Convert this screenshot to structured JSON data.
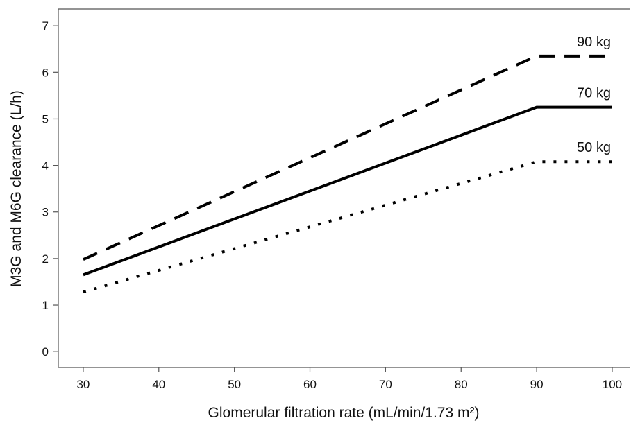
{
  "chart_data": {
    "type": "line",
    "x_label": "Glomerular filtration rate (mL/min/1.73 m²)",
    "y_label": "M3G and M6G clearance (L/h)",
    "x": [
      30,
      90,
      100
    ],
    "series": [
      {
        "name": "90 kg",
        "color": "#000000",
        "line_style": "dashed",
        "values": [
          1.98,
          6.35,
          6.35
        ]
      },
      {
        "name": "70 kg",
        "color": "#000000",
        "line_style": "solid",
        "values": [
          1.65,
          5.25,
          5.25
        ]
      },
      {
        "name": "50 kg",
        "color": "#000000",
        "line_style": "dotted",
        "values": [
          1.28,
          4.08,
          4.08
        ]
      }
    ],
    "xlim": [
      26.7,
      102.3
    ],
    "ylim": [
      -0.34,
      7.36
    ],
    "xticks": [
      30,
      40,
      50,
      60,
      70,
      80,
      90,
      100
    ],
    "yticks": [
      0,
      1,
      2,
      3,
      4,
      5,
      6,
      7
    ]
  }
}
